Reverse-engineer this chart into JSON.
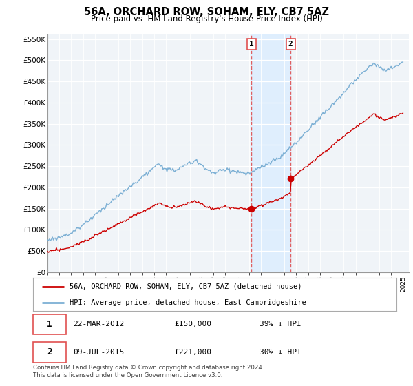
{
  "title": "56A, ORCHARD ROW, SOHAM, ELY, CB7 5AZ",
  "subtitle": "Price paid vs. HM Land Registry's House Price Index (HPI)",
  "legend_line1": "56A, ORCHARD ROW, SOHAM, ELY, CB7 5AZ (detached house)",
  "legend_line2": "HPI: Average price, detached house, East Cambridgeshire",
  "footnote": "Contains HM Land Registry data © Crown copyright and database right 2024.\nThis data is licensed under the Open Government Licence v3.0.",
  "transaction1": {
    "label": "1",
    "date": "22-MAR-2012",
    "price": "£150,000",
    "pct": "39% ↓ HPI"
  },
  "transaction2": {
    "label": "2",
    "date": "09-JUL-2015",
    "price": "£221,000",
    "pct": "30% ↓ HPI"
  },
  "vline1_year": 2012.22,
  "vline2_year": 2015.52,
  "ylim": [
    0,
    560000
  ],
  "xlim_start": 1995.0,
  "xlim_end": 2025.5,
  "property_color": "#cc0000",
  "hpi_color": "#7bafd4",
  "shaded_color": "#ddeeff",
  "vline_color": "#e05050",
  "grid_color": "#cccccc",
  "bg_color": "#f0f4f8"
}
